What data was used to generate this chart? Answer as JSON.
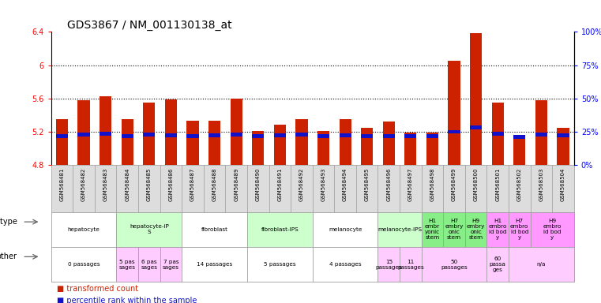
{
  "title": "GDS3867 / NM_001130138_at",
  "samples": [
    "GSM568481",
    "GSM568482",
    "GSM568483",
    "GSM568484",
    "GSM568485",
    "GSM568486",
    "GSM568487",
    "GSM568488",
    "GSM568489",
    "GSM568490",
    "GSM568491",
    "GSM568492",
    "GSM568493",
    "GSM568494",
    "GSM568495",
    "GSM568496",
    "GSM568497",
    "GSM568498",
    "GSM568499",
    "GSM568500",
    "GSM568501",
    "GSM568502",
    "GSM568503",
    "GSM568504"
  ],
  "red_values": [
    5.35,
    5.58,
    5.63,
    5.35,
    5.55,
    5.59,
    5.33,
    5.33,
    5.6,
    5.21,
    5.29,
    5.35,
    5.21,
    5.35,
    5.25,
    5.32,
    5.19,
    5.19,
    6.05,
    6.38,
    5.55,
    5.16,
    5.58,
    5.25
  ],
  "blue_values": [
    5.15,
    5.17,
    5.18,
    5.15,
    5.17,
    5.16,
    5.15,
    5.16,
    5.17,
    5.15,
    5.16,
    5.17,
    5.15,
    5.16,
    5.15,
    5.15,
    5.15,
    5.15,
    5.2,
    5.25,
    5.18,
    5.14,
    5.17,
    5.16
  ],
  "ymin": 4.8,
  "ymax": 6.4,
  "y_ticks_left": [
    4.8,
    5.2,
    5.6,
    6.0,
    6.4
  ],
  "y_ticks_right_labels": [
    "0%",
    "25%",
    "50%",
    "75%",
    "100%"
  ],
  "y_ticks_right_vals": [
    4.8,
    5.2,
    5.6,
    6.0,
    6.4
  ],
  "dotted_lines": [
    5.2,
    5.6,
    6.0
  ],
  "cell_type_groups": [
    {
      "label": "hepatocyte",
      "start": 0,
      "end": 3,
      "color": "#ffffff"
    },
    {
      "label": "hepatocyte-iP\nS",
      "start": 3,
      "end": 6,
      "color": "#ccffcc"
    },
    {
      "label": "fibroblast",
      "start": 6,
      "end": 9,
      "color": "#ffffff"
    },
    {
      "label": "fibroblast-IPS",
      "start": 9,
      "end": 12,
      "color": "#ccffcc"
    },
    {
      "label": "melanocyte",
      "start": 12,
      "end": 15,
      "color": "#ffffff"
    },
    {
      "label": "melanocyte-IPS",
      "start": 15,
      "end": 17,
      "color": "#ccffcc"
    },
    {
      "label": "H1\nembr\nyonic\nstem",
      "start": 17,
      "end": 18,
      "color": "#88ee88"
    },
    {
      "label": "H7\nembry\nonic\nstem",
      "start": 18,
      "end": 19,
      "color": "#88ee88"
    },
    {
      "label": "H9\nembry\nonic\nstem",
      "start": 19,
      "end": 20,
      "color": "#88ee88"
    },
    {
      "label": "H1\nembro\nid bod\ny",
      "start": 20,
      "end": 21,
      "color": "#ff99ff"
    },
    {
      "label": "H7\nembro\nid bod\ny",
      "start": 21,
      "end": 22,
      "color": "#ff99ff"
    },
    {
      "label": "H9\nembro\nid bod\ny",
      "start": 22,
      "end": 24,
      "color": "#ff99ff"
    }
  ],
  "other_groups": [
    {
      "label": "0 passages",
      "start": 0,
      "end": 3,
      "color": "#ffffff"
    },
    {
      "label": "5 pas\nsages",
      "start": 3,
      "end": 4,
      "color": "#ffccff"
    },
    {
      "label": "6 pas\nsages",
      "start": 4,
      "end": 5,
      "color": "#ffccff"
    },
    {
      "label": "7 pas\nsages",
      "start": 5,
      "end": 6,
      "color": "#ffccff"
    },
    {
      "label": "14 passages",
      "start": 6,
      "end": 9,
      "color": "#ffffff"
    },
    {
      "label": "5 passages",
      "start": 9,
      "end": 12,
      "color": "#ffffff"
    },
    {
      "label": "4 passages",
      "start": 12,
      "end": 15,
      "color": "#ffffff"
    },
    {
      "label": "15\npassages",
      "start": 15,
      "end": 16,
      "color": "#ffccff"
    },
    {
      "label": "11\npassages",
      "start": 16,
      "end": 17,
      "color": "#ffccff"
    },
    {
      "label": "50\npassages",
      "start": 17,
      "end": 20,
      "color": "#ffccff"
    },
    {
      "label": "60\npassa\nges",
      "start": 20,
      "end": 21,
      "color": "#ffccff"
    },
    {
      "label": "n/a",
      "start": 21,
      "end": 24,
      "color": "#ffccff"
    }
  ],
  "bar_color": "#cc2200",
  "blue_color": "#1111cc",
  "label_row_color": "#dddddd",
  "title_fontsize": 10,
  "tick_fontsize": 7,
  "gsm_fontsize": 5.0,
  "ann_fontsize": 5.2,
  "row_label_fontsize": 7
}
